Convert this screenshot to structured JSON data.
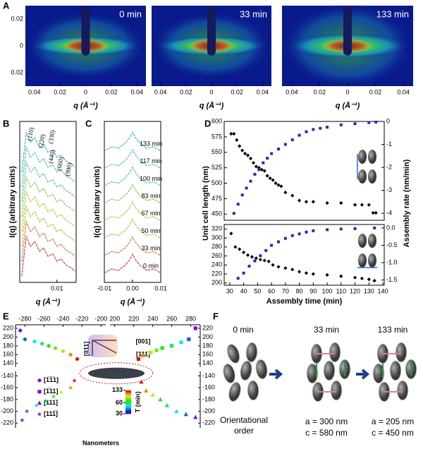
{
  "panel_labels": [
    "A",
    "B",
    "C",
    "D",
    "E",
    "F"
  ],
  "chart_data": [
    {
      "type": "heatmap",
      "title": "0 min",
      "xlabel": "q (Å⁻¹)",
      "xlim": [
        -0.047,
        0.047
      ],
      "ylim": [
        -0.03,
        0.03
      ],
      "xticks": [
        {
          "value": -0.04,
          "label": "0.04"
        },
        {
          "value": -0.02,
          "label": "0.02"
        },
        0,
        0.02,
        0.04
      ],
      "yticks": [
        {
          "value": -0.02,
          "label": "0.02"
        },
        0,
        0.02
      ]
    },
    {
      "type": "heatmap",
      "title": "33 min",
      "xlabel": "q (Å⁻¹)",
      "xlim": [
        -0.047,
        0.047
      ],
      "ylim": [
        -0.03,
        0.03
      ],
      "xticks": [
        {
          "value": -0.04,
          "label": "0.04"
        },
        {
          "value": -0.02,
          "label": "0.02"
        },
        0,
        0.02,
        0.04
      ]
    },
    {
      "type": "heatmap",
      "title": "133 min",
      "xlabel": "q (Å⁻¹)",
      "xlim": [
        -0.047,
        0.047
      ],
      "ylim": [
        -0.03,
        0.03
      ],
      "xticks": [
        {
          "value": -0.04,
          "label": "0.04"
        },
        {
          "value": -0.02,
          "label": "0.02"
        },
        0,
        0.02,
        0.04
      ]
    },
    {
      "type": "line",
      "xlabel": "q (Å⁻¹)",
      "ylabel": "I(q) (arbitrary units)",
      "xlog": true,
      "xlim": [
        0.004,
        0.016
      ],
      "ylim": [
        -0.5,
        12.5
      ],
      "xticks": [
        0.01
      ],
      "annotations": [
        "(110)",
        "(220)",
        "(330)",
        "(440)",
        "(660)",
        "(990)"
      ],
      "x": [
        0.0042,
        0.0047,
        0.0052,
        0.0058,
        0.0065,
        0.0072,
        0.008,
        0.009,
        0.01,
        0.011,
        0.0125,
        0.014,
        0.0155
      ],
      "series": [
        {
          "color": "#c83c3c",
          "values": [
            0,
            3.2,
            2.4,
            2.8,
            2.0,
            2.3,
            1.6,
            1.8,
            1.2,
            1.4,
            0.9,
            0.7,
            0.4
          ]
        },
        {
          "color": "#c8783c",
          "values": [
            1.2,
            4.4,
            3.6,
            4.0,
            3.2,
            3.5,
            2.8,
            3.0,
            2.4,
            2.6,
            2.1,
            1.9,
            1.6
          ]
        },
        {
          "color": "#c8b43c",
          "values": [
            2.4,
            5.6,
            4.8,
            5.2,
            4.4,
            4.7,
            4.0,
            4.2,
            3.6,
            3.8,
            3.3,
            3.1,
            2.8
          ]
        },
        {
          "color": "#b4c83c",
          "values": [
            3.6,
            6.8,
            6.0,
            6.4,
            5.6,
            5.9,
            5.2,
            5.4,
            4.8,
            5.0,
            4.5,
            4.3,
            4.0
          ]
        },
        {
          "color": "#8cc850",
          "values": [
            4.8,
            8.0,
            7.2,
            7.6,
            6.8,
            7.1,
            6.4,
            6.6,
            6.0,
            6.2,
            5.7,
            5.5,
            5.2
          ]
        },
        {
          "color": "#5ac88c",
          "values": [
            6.0,
            9.2,
            8.4,
            8.8,
            8.0,
            8.3,
            7.6,
            7.8,
            7.2,
            7.4,
            6.9,
            6.7,
            6.4
          ]
        },
        {
          "color": "#46c8b4",
          "values": [
            7.2,
            10.4,
            9.6,
            10.0,
            9.2,
            9.5,
            8.8,
            9.0,
            8.4,
            8.6,
            8.1,
            7.9,
            7.6
          ]
        },
        {
          "color": "#3cb4c8",
          "values": [
            8.4,
            11.6,
            10.8,
            11.2,
            10.4,
            10.7,
            10.0,
            10.2,
            9.6,
            9.8,
            9.3,
            9.1,
            8.8
          ]
        }
      ]
    },
    {
      "type": "line",
      "xlabel": "q (Å⁻¹)",
      "ylabel": "I(q) (arbitrary units)",
      "xlim": [
        -0.01,
        0.01
      ],
      "ylim": [
        -0.5,
        11.5
      ],
      "xticks": [
        -0.01,
        {
          "value": 0,
          "label": "0.00"
        },
        0.01
      ],
      "x": [
        -0.01,
        -0.0075,
        -0.005,
        -0.0025,
        -0.001,
        0,
        0.001,
        0.0025,
        0.005,
        0.0075,
        0.01
      ],
      "series": [
        {
          "name": "133 min",
          "color": "#3cb4c8",
          "values": [
            9.3,
            9.6,
            9.5,
            9.9,
            10.3,
            10.7,
            10.3,
            9.9,
            9.5,
            9.6,
            9.3
          ]
        },
        {
          "name": "117 min",
          "color": "#46c8b4",
          "values": [
            8.0,
            8.3,
            8.2,
            8.6,
            9.0,
            9.4,
            9.0,
            8.6,
            8.2,
            8.3,
            8.0
          ]
        },
        {
          "name": "100 min",
          "color": "#5ac88c",
          "values": [
            6.7,
            7.0,
            6.9,
            7.3,
            7.7,
            8.1,
            7.7,
            7.3,
            6.9,
            7.0,
            6.7
          ]
        },
        {
          "name": "83 min",
          "color": "#8cc850",
          "values": [
            5.4,
            5.7,
            5.6,
            6.0,
            6.4,
            6.8,
            6.4,
            6.0,
            5.6,
            5.7,
            5.4
          ]
        },
        {
          "name": "67 min",
          "color": "#b4c83c",
          "values": [
            4.1,
            4.4,
            4.3,
            4.7,
            5.1,
            5.5,
            5.1,
            4.7,
            4.3,
            4.4,
            4.1
          ]
        },
        {
          "name": "50 min",
          "color": "#c8b43c",
          "values": [
            2.8,
            3.1,
            3.0,
            3.4,
            3.8,
            4.2,
            3.8,
            3.4,
            3.0,
            3.1,
            2.8
          ]
        },
        {
          "name": "33 min",
          "color": "#c8783c",
          "values": [
            1.5,
            1.8,
            1.7,
            2.1,
            2.5,
            2.9,
            2.5,
            2.1,
            1.7,
            1.8,
            1.5
          ]
        },
        {
          "name": "0 min",
          "color": "#c83c3c",
          "values": [
            0.2,
            0.5,
            0.4,
            0.8,
            1.2,
            1.6,
            1.2,
            0.8,
            0.4,
            0.5,
            0.2
          ]
        }
      ]
    },
    {
      "type": "scatter",
      "ylabel": "Unit cell length (nm)",
      "y2label": "Assembly rate (nm/min)",
      "xlim": [
        26,
        141
      ],
      "ylim": [
        440,
        600
      ],
      "yticks": [
        450,
        475,
        500,
        525,
        550,
        575,
        600
      ],
      "y2lim": [
        -4.3,
        0
      ],
      "y2ticks": [
        0,
        -1,
        -2,
        -3,
        -4
      ],
      "series": [
        {
          "color": "#000000",
          "marker": "diamond",
          "x": [
            31,
            33,
            35,
            37,
            39,
            41,
            43,
            45,
            47,
            49,
            51,
            53,
            55,
            57,
            59,
            61,
            63,
            65,
            67,
            70,
            75,
            80,
            85,
            90,
            100,
            110,
            120,
            125,
            130,
            133,
            135
          ],
          "values": [
            580,
            580,
            570,
            560,
            553,
            548,
            545,
            540,
            533,
            527,
            525,
            522,
            520,
            512,
            508,
            505,
            500,
            497,
            495,
            485,
            480,
            472,
            470,
            470,
            468,
            468,
            465,
            465,
            465,
            452,
            452
          ]
        },
        {
          "color": "#1f2fb4",
          "marker": "square",
          "axis": "y2",
          "x": [
            33,
            36,
            39,
            42,
            45,
            48,
            51,
            54,
            57,
            60,
            65,
            70,
            75,
            80,
            85,
            90,
            95,
            100,
            110,
            120,
            130,
            135
          ],
          "values": [
            -4.0,
            -3.6,
            -3.2,
            -2.9,
            -2.6,
            -2.3,
            -2.1,
            -1.8,
            -1.6,
            -1.4,
            -1.2,
            -1.0,
            -0.8,
            -0.6,
            -0.45,
            -0.35,
            -0.3,
            -0.25,
            -0.15,
            -0.1,
            -0.05,
            -0.03
          ]
        }
      ]
    },
    {
      "type": "scatter",
      "xlabel": "Assembly time (min)",
      "xlim": [
        26,
        141
      ],
      "xticks": [
        30,
        40,
        50,
        60,
        70,
        80,
        90,
        100,
        110,
        120,
        130,
        140
      ],
      "ylim": [
        195,
        330
      ],
      "yticks": [
        200,
        220,
        240,
        260,
        280,
        300,
        320
      ],
      "y2lim": [
        -1.65,
        0.1
      ],
      "y2ticks": [
        {
          "value": 0,
          "label": "0.0"
        },
        -0.5,
        {
          "value": -1,
          "label": "-1.0"
        },
        -1.5
      ],
      "series": [
        {
          "color": "#000000",
          "marker": "diamond",
          "x": [
            31,
            34,
            37,
            40,
            43,
            46,
            49,
            52,
            55,
            58,
            61,
            65,
            70,
            75,
            80,
            85,
            90,
            100,
            110,
            120,
            125,
            130,
            134
          ],
          "values": [
            310,
            280,
            275,
            268,
            262,
            258,
            255,
            252,
            250,
            248,
            240,
            236,
            233,
            230,
            225,
            222,
            220,
            218,
            215,
            212,
            210,
            208,
            205
          ]
        },
        {
          "color": "#1f2fb4",
          "marker": "square",
          "axis": "y2",
          "x": [
            36,
            40,
            44,
            48,
            52,
            56,
            60,
            65,
            70,
            75,
            80,
            85,
            90,
            100,
            110,
            120,
            134
          ],
          "values": [
            -1.45,
            -1.3,
            -1.1,
            -0.95,
            -0.8,
            -0.65,
            -0.5,
            -0.4,
            -0.3,
            -0.22,
            -0.17,
            -0.12,
            -0.08,
            -0.05,
            -0.03,
            -0.02,
            0
          ]
        }
      ]
    },
    {
      "type": "scatter",
      "xlabel": "Nanometers",
      "xlim": [
        -290,
        290
      ],
      "xbreak": [
        -195,
        195
      ],
      "ylim": [
        -228,
        228
      ],
      "ybreak": [
        -132,
        132
      ],
      "xticks": [
        -280,
        -260,
        -240,
        -220,
        -200,
        200,
        220,
        240,
        260,
        280
      ],
      "yticks": [
        220,
        200,
        180,
        160,
        140,
        -140,
        -160,
        -180,
        -200,
        -220
      ],
      "annotations": [
        "[001]",
        "[111]",
        "[011]"
      ],
      "colorbar": {
        "label": "T (min)",
        "lim": [
          30,
          133
        ],
        "ticks": [
          133,
          60,
          30
        ],
        "log": true
      },
      "series": [
        {
          "name": "[1̅1̅1]",
          "marker": "circle",
          "x": [
            -285,
            -280,
            -270,
            -262,
            -255,
            -248,
            -240,
            -232,
            -225
          ],
          "values": [
            215,
            195,
            190,
            185,
            180,
            175,
            168,
            160,
            150
          ],
          "t": [
            30,
            40,
            50,
            60,
            70,
            80,
            90,
            110,
            133
          ]
        },
        {
          "name": "[1̅11]",
          "marker": "square",
          "x": [
            285,
            278,
            270,
            260,
            250,
            244,
            238,
            230,
            225
          ],
          "values": [
            220,
            195,
            188,
            180,
            175,
            170,
            165,
            158,
            150
          ],
          "t": [
            30,
            40,
            50,
            60,
            70,
            80,
            90,
            110,
            133
          ]
        },
        {
          "name": "[111]",
          "marker": "triangle",
          "x": [
            285,
            275,
            265,
            255,
            248,
            240,
            233,
            228
          ],
          "values": [
            -210,
            -205,
            -200,
            -190,
            -180,
            -172,
            -165,
            -150
          ],
          "t": [
            30,
            40,
            50,
            60,
            70,
            90,
            110,
            133
          ]
        },
        {
          "name": "[111̅]",
          "marker": "star",
          "x": [
            -283,
            -278,
            -268,
            -258,
            -250,
            -242,
            -232,
            -228
          ],
          "values": [
            -215,
            -200,
            -190,
            -183,
            -175,
            -168,
            -160,
            -148
          ],
          "t": [
            30,
            40,
            50,
            60,
            70,
            90,
            110,
            133
          ]
        }
      ]
    }
  ],
  "panel_f": {
    "times": [
      "0 min",
      "33 min",
      "133 min"
    ],
    "captions": [
      "Orientational order",
      "a = 300 nm",
      "c = 580 nm",
      "a = 205 nm",
      "c = 450 nm"
    ]
  }
}
